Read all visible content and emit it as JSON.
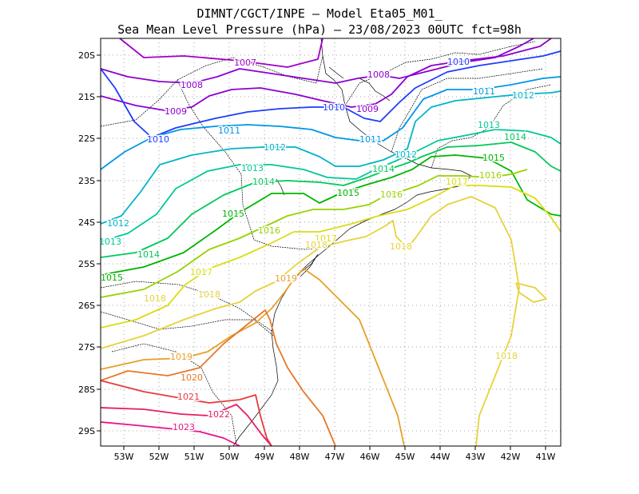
{
  "title": {
    "line1": "DIMNT/CGCT/INPE –  Model Eta05_M01_",
    "line2": "Sea Mean Level Pressure (hPa) – 23/08/2023 00UTC fct=98h"
  },
  "axes": {
    "lon_labels": [
      "53W",
      "52W",
      "51W",
      "50W",
      "49W",
      "48W",
      "47W",
      "46W",
      "45W",
      "44W",
      "43W",
      "42W",
      "41W"
    ],
    "lat_labels": [
      "20S",
      "21S",
      "22S",
      "23S",
      "24S",
      "25S",
      "26S",
      "27S",
      "28S",
      "29S"
    ]
  },
  "chart_data": {
    "type": "contour",
    "title": "Sea Mean Level Pressure (hPa) – 23/08/2023 00UTC fct=98h",
    "units": "hPa",
    "contour_interval": 1,
    "levels": [
      {
        "value": 1007,
        "label": "1007",
        "color": "#a000c8"
      },
      {
        "value": 1008,
        "label": "1008",
        "color": "#8c00d0"
      },
      {
        "value": 1009,
        "label": "1009",
        "color": "#8c00d0"
      },
      {
        "value": 1010,
        "label": "1010",
        "color": "#1e3cff"
      },
      {
        "value": 1011,
        "label": "1011",
        "color": "#0096e6"
      },
      {
        "value": 1012,
        "label": "1012",
        "color": "#00b4c8"
      },
      {
        "value": 1013,
        "label": "1013",
        "color": "#00c896"
      },
      {
        "value": 1014,
        "label": "1014",
        "color": "#00c85a"
      },
      {
        "value": 1015,
        "label": "1015",
        "color": "#00b400"
      },
      {
        "value": 1016,
        "label": "1016",
        "color": "#96d200"
      },
      {
        "value": 1017,
        "label": "1017",
        "color": "#dcdc14"
      },
      {
        "value": 1018,
        "label": "1018",
        "color": "#e6d23c"
      },
      {
        "value": 1019,
        "label": "1019",
        "color": "#e6a028"
      },
      {
        "value": 1020,
        "label": "1020",
        "color": "#e67828"
      },
      {
        "value": 1021,
        "label": "1021",
        "color": "#e63c3c"
      },
      {
        "value": 1022,
        "label": "1022",
        "color": "#e61e64"
      },
      {
        "value": 1023,
        "label": "1023",
        "color": "#e6148c"
      }
    ],
    "lon_range": [
      "53.6W",
      "40.6W"
    ],
    "lat_range": [
      "19.7S",
      "29.4S"
    ],
    "grid": true
  }
}
